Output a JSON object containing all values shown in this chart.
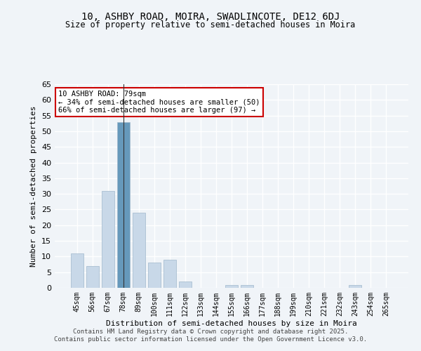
{
  "title1": "10, ASHBY ROAD, MOIRA, SWADLINCOTE, DE12 6DJ",
  "title2": "Size of property relative to semi-detached houses in Moira",
  "xlabel": "Distribution of semi-detached houses by size in Moira",
  "ylabel": "Number of semi-detached properties",
  "categories": [
    "45sqm",
    "56sqm",
    "67sqm",
    "78sqm",
    "89sqm",
    "100sqm",
    "111sqm",
    "122sqm",
    "133sqm",
    "144sqm",
    "155sqm",
    "166sqm",
    "177sqm",
    "188sqm",
    "199sqm",
    "210sqm",
    "221sqm",
    "232sqm",
    "243sqm",
    "254sqm",
    "265sqm"
  ],
  "values": [
    11,
    7,
    31,
    53,
    24,
    8,
    9,
    2,
    0,
    0,
    1,
    1,
    0,
    0,
    0,
    0,
    0,
    0,
    1,
    0,
    0
  ],
  "bar_color": "#c8d8e8",
  "bar_edge_color": "#a0b8cc",
  "highlight_bar_index": 3,
  "highlight_color": "#6699bb",
  "annotation_title": "10 ASHBY ROAD: 79sqm",
  "annotation_line1": "← 34% of semi-detached houses are smaller (50)",
  "annotation_line2": "66% of semi-detached houses are larger (97) →",
  "annotation_box_color": "#ffffff",
  "annotation_box_edge": "#cc0000",
  "ylim": [
    0,
    65
  ],
  "yticks": [
    0,
    5,
    10,
    15,
    20,
    25,
    30,
    35,
    40,
    45,
    50,
    55,
    60,
    65
  ],
  "bg_color": "#f0f4f8",
  "plot_bg_color": "#f0f4f8",
  "grid_color": "#ffffff",
  "footer1": "Contains HM Land Registry data © Crown copyright and database right 2025.",
  "footer2": "Contains public sector information licensed under the Open Government Licence v3.0."
}
